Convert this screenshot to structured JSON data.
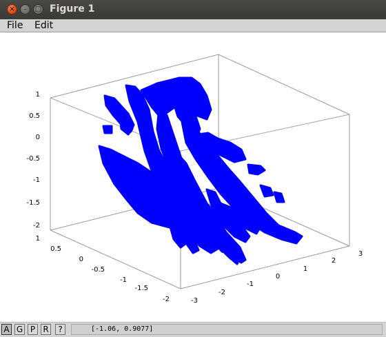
{
  "window": {
    "title": "Figure 1"
  },
  "menu": {
    "file": "File",
    "edit": "Edit"
  },
  "axes": {
    "z_ticks": [
      "1",
      "0.5",
      "0",
      "-0.5",
      "-1",
      "-1.5",
      "-2"
    ],
    "y_ticks": [
      "1",
      "0.5",
      "0",
      "-0.5",
      "-1",
      "-1.5",
      "-2"
    ],
    "x_ticks": [
      "-3",
      "-2",
      "-1",
      "0",
      "1",
      "2",
      "3"
    ]
  },
  "plot": {
    "marker_color": "#0000ff",
    "box_color": "#9a9a9a"
  },
  "toolbar": {
    "buttons": [
      {
        "label": "A",
        "active": true
      },
      {
        "label": "G",
        "active": false
      },
      {
        "label": "P",
        "active": false
      },
      {
        "label": "R",
        "active": false
      },
      {
        "label": "?",
        "active": false
      }
    ]
  },
  "status": {
    "coordinates": "[-1.06, 0.9077]"
  }
}
